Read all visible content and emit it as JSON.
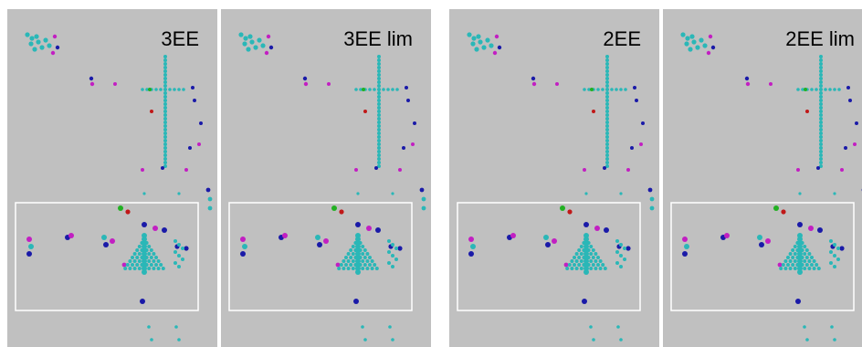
{
  "panels": [
    {
      "label": "3EE"
    },
    {
      "label": "3EE lim"
    },
    {
      "label": "2EE"
    },
    {
      "label": "2EE lim"
    }
  ]
}
